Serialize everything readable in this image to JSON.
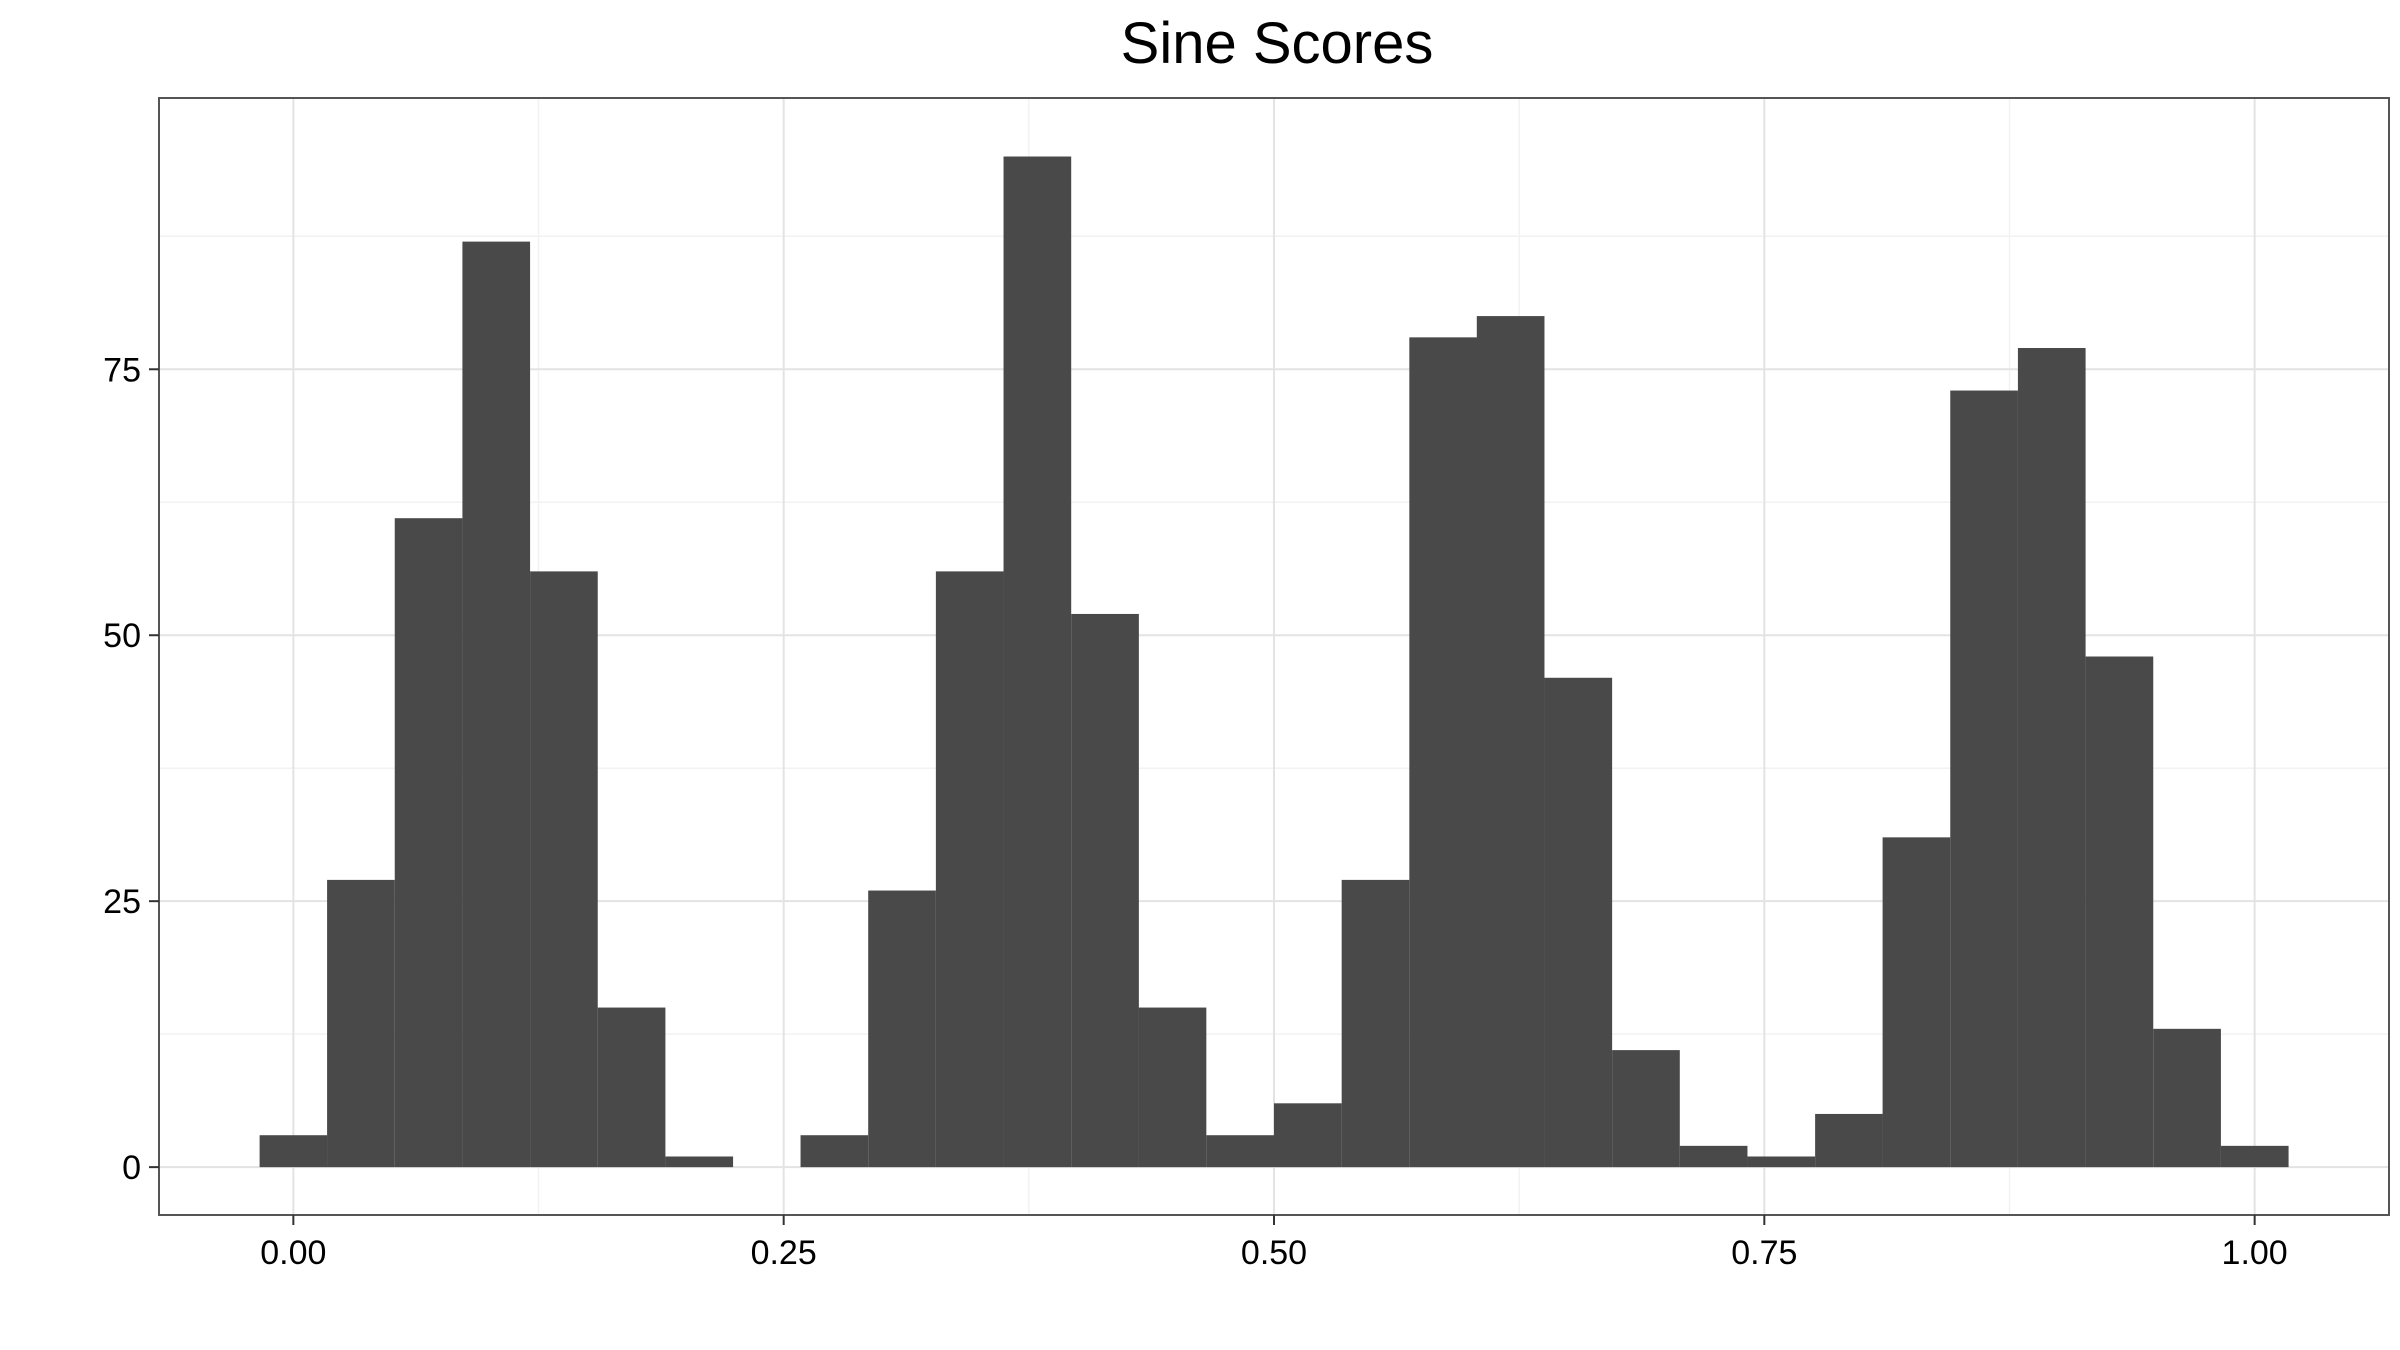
{
  "chart_data": {
    "type": "bar",
    "title": "Sine Scores",
    "xlabel": "",
    "ylabel": "",
    "grid": true,
    "legend": "none",
    "bar_color": "#494949",
    "xlim": [
      -0.0685,
      1.0685
    ],
    "ylim": [
      -4.5,
      100.5
    ],
    "x_ticks": [
      0.0,
      0.25,
      0.5,
      0.75,
      1.0
    ],
    "x_tick_labels": [
      "0.00",
      "0.25",
      "0.50",
      "0.75",
      "1.00"
    ],
    "y_ticks": [
      0,
      25,
      50,
      75
    ],
    "y_tick_labels": [
      "0",
      "25",
      "50",
      "75"
    ],
    "bin_width": 0.0345,
    "bin_starts": [
      -0.0172,
      0.0172,
      0.0517,
      0.0862,
      0.1207,
      0.1552,
      0.1897,
      0.2241,
      0.2586,
      0.2931,
      0.3276,
      0.3621,
      0.3966,
      0.431,
      0.4655,
      0.5,
      0.5345,
      0.569,
      0.6034,
      0.6379,
      0.6724,
      0.7069,
      0.7414,
      0.7759,
      0.8103,
      0.8448,
      0.8793,
      0.9138,
      0.9483,
      0.9828
    ],
    "values": [
      3,
      27,
      61,
      87,
      56,
      15,
      1,
      0,
      3,
      26,
      56,
      95,
      52,
      15,
      3,
      6,
      27,
      78,
      80,
      46,
      11,
      2,
      1,
      5,
      31,
      73,
      77,
      48,
      13,
      2
    ]
  }
}
